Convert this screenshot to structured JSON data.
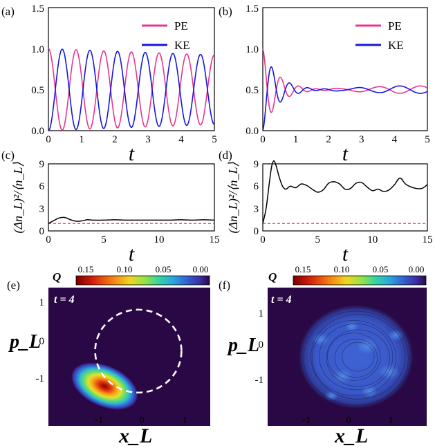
{
  "chart_data": [
    {
      "panel": "(a)",
      "type": "line",
      "xlabel": "t",
      "ylabel": "",
      "xlim": [
        0,
        5
      ],
      "ylim": [
        0,
        1.5
      ],
      "xticks": [
        "0",
        "1",
        "2",
        "3",
        "4",
        "5"
      ],
      "yticks": [
        "0.0",
        "0.5",
        "1.0",
        "1.5"
      ],
      "legend_position": "top-right",
      "series": [
        {
          "name": "PE",
          "color": "#e8358f",
          "model": "cos2_decay",
          "omega": 7.54,
          "decay_time": 30
        },
        {
          "name": "KE",
          "color": "#1515e0",
          "model": "sin2_decay",
          "omega": 7.54,
          "decay_time": 30
        }
      ]
    },
    {
      "panel": "(b)",
      "type": "line",
      "xlabel": "t",
      "ylabel": "",
      "xlim": [
        0,
        5
      ],
      "ylim": [
        0,
        1.5
      ],
      "xticks": [
        "0",
        "1",
        "2",
        "3",
        "4",
        "5"
      ],
      "yticks": [
        "0.0",
        "0.5",
        "1.0",
        "1.5"
      ],
      "legend_position": "top-right",
      "series": [
        {
          "name": "PE",
          "color": "#e8358f",
          "model": "collapse_revival",
          "omega": 11.5,
          "decay_time": 0.45,
          "revival_amp": 0.045
        },
        {
          "name": "KE",
          "color": "#1515e0",
          "model": "collapse_revival",
          "omega": 11.5,
          "decay_time": 0.45,
          "revival_amp": 0.045
        }
      ]
    },
    {
      "panel": "(c)",
      "type": "line",
      "xlabel": "t",
      "ylabel": "(Δn_L)²/⟨n_L⟩",
      "xlim": [
        0,
        15
      ],
      "ylim": [
        0,
        9
      ],
      "xticks": [
        "0",
        "5",
        "10",
        "15"
      ],
      "yticks": [
        "0",
        "3",
        "6",
        "9"
      ],
      "reference_line": {
        "y": 1,
        "color": "#e8358f",
        "style": "dashed"
      },
      "series": [
        {
          "name": "",
          "color": "#000000",
          "x": [
            0,
            0.5,
            1,
            1.5,
            2,
            2.5,
            3,
            3.5,
            4,
            5,
            6,
            7,
            8,
            9,
            10,
            11,
            12,
            13,
            14,
            15
          ],
          "y": [
            1.0,
            1.4,
            1.75,
            1.8,
            1.5,
            1.3,
            1.35,
            1.5,
            1.45,
            1.45,
            1.5,
            1.45,
            1.45,
            1.45,
            1.45,
            1.45,
            1.5,
            1.45,
            1.5,
            1.45
          ]
        }
      ]
    },
    {
      "panel": "(d)",
      "type": "line",
      "xlabel": "t",
      "ylabel": "(Δn_L)²/⟨n_L⟩",
      "xlim": [
        0,
        15
      ],
      "ylim": [
        0,
        9
      ],
      "xticks": [
        "0",
        "5",
        "10",
        "15"
      ],
      "yticks": [
        "0",
        "3",
        "6",
        "9"
      ],
      "reference_line": {
        "y": 1,
        "color": "#e8358f",
        "style": "dashed"
      },
      "series": [
        {
          "name": "",
          "color": "#000000",
          "x": [
            0,
            0.3,
            0.6,
            0.8,
            1.0,
            1.2,
            1.5,
            1.8,
            2.1,
            2.5,
            3,
            3.5,
            4,
            4.5,
            5,
            5.5,
            6,
            6.5,
            7,
            7.5,
            8,
            8.5,
            9,
            9.5,
            10,
            10.5,
            11,
            11.5,
            12,
            12.5,
            13,
            13.5,
            14,
            14.5,
            15
          ],
          "y": [
            1.0,
            3.0,
            6.5,
            8.6,
            9.4,
            8.8,
            7.2,
            6.0,
            5.6,
            6.0,
            5.8,
            6.3,
            6.1,
            5.6,
            5.2,
            5.5,
            6.4,
            6.6,
            6.3,
            5.6,
            5.7,
            6.4,
            6.5,
            5.9,
            5.4,
            5.6,
            5.3,
            5.5,
            6.2,
            7.1,
            6.3,
            5.9,
            5.7,
            5.7,
            6.2
          ]
        }
      ]
    },
    {
      "panel": "(e)",
      "type": "heatmap",
      "quantity_label": "Q",
      "time_label": "t = 4",
      "xlabel": "x_L",
      "ylabel": "p_L",
      "xlim": [
        -2.0,
        1.6
      ],
      "ylim": [
        -1.7,
        1.5
      ],
      "xticks": [
        "-1",
        "0",
        "1"
      ],
      "yticks": [
        "1",
        "0",
        "-1"
      ],
      "colorbar": {
        "ticks": [
          "0.15",
          "0.10",
          "0.05",
          "0.00"
        ],
        "range": [
          0.15,
          0.0
        ]
      },
      "peak": {
        "x": -0.75,
        "y": -0.78,
        "value": 0.15
      },
      "dashed_circle": {
        "cx": 0,
        "cy": 0.03,
        "r": 0.96
      }
    },
    {
      "panel": "(f)",
      "type": "heatmap",
      "quantity_label": "Q",
      "time_label": "t = 4",
      "xlabel": "x_L",
      "ylabel": "p_L",
      "xlim": [
        -2.0,
        1.6
      ],
      "ylim": [
        -1.7,
        1.5
      ],
      "xticks": [
        "-1",
        "0",
        "1"
      ],
      "yticks": [
        "1",
        "0",
        "-1"
      ],
      "colorbar": {
        "ticks": [
          "0.15",
          "0.10",
          "0.05",
          "0.00"
        ],
        "range": [
          0.15,
          0.0
        ]
      },
      "distribution": "diffuse",
      "blob_radius": 1.3
    }
  ],
  "colors": {
    "pe": "#e8358f",
    "ke": "#1515e0",
    "background_dark": "#2a0845",
    "text_white": "#ffffff"
  }
}
